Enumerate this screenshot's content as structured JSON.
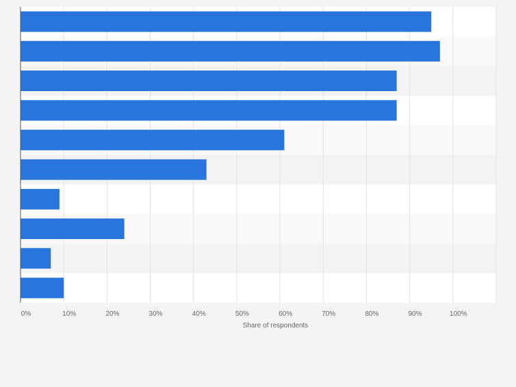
{
  "chart_data": {
    "type": "bar",
    "orientation": "horizontal",
    "categories": [
      "",
      "",
      "",
      "",
      "",
      "",
      "",
      "",
      "",
      ""
    ],
    "values": [
      95,
      97,
      87,
      87,
      61,
      43,
      9,
      24,
      7,
      10
    ],
    "xlabel": "Share of respondents",
    "ylabel": "",
    "xlim": [
      0,
      110
    ],
    "xticks": [
      0,
      10,
      20,
      30,
      40,
      50,
      60,
      70,
      80,
      90,
      100
    ],
    "xtick_labels": [
      "0%",
      "10%",
      "20%",
      "30%",
      "40%",
      "50%",
      "60%",
      "70%",
      "80%",
      "90%",
      "100%"
    ],
    "grid": true,
    "bar_color": "#2876dd",
    "band_colors": [
      "#ffffff",
      "#f9f9f9",
      "#f3f3f3"
    ],
    "gridline_color": "#e2e2e2",
    "axis_color": "#555555",
    "tick_label_color": "#666666"
  }
}
